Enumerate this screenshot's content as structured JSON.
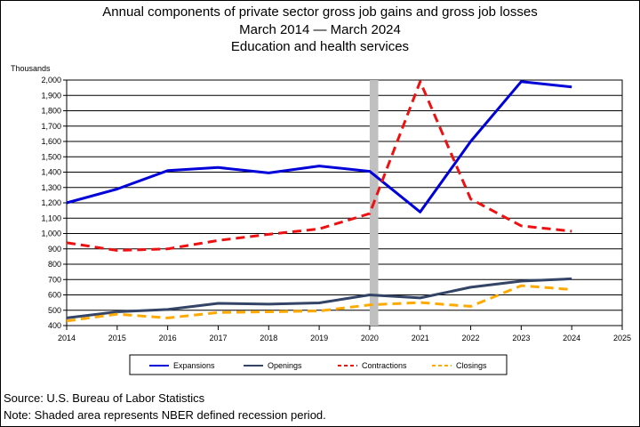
{
  "header": {
    "title_line1": "Annual components of private sector gross job gains and gross job losses",
    "title_line2": "March 2014  — March 2024",
    "title_line3": "Education and health services"
  },
  "footer": {
    "source": "Source: U.S. Bureau of Labor Statistics",
    "note": "Note: Shaded area represents NBER defined recession period."
  },
  "colors": {
    "expansions": "#0000d8",
    "openings": "#334466",
    "contractions": "#ee1111",
    "closings": "#ffaa00",
    "recession": "#c0c0c0"
  },
  "chart_data": {
    "type": "line",
    "ylabel": "Thousands",
    "ylim": [
      400,
      2000
    ],
    "xlim": [
      2014,
      2025
    ],
    "y_ticks": [
      "400",
      "500",
      "600",
      "700",
      "800",
      "900",
      "1,000",
      "1,100",
      "1,200",
      "1,300",
      "1,400",
      "1,500",
      "1,600",
      "1,700",
      "1,800",
      "1,900",
      "2,000"
    ],
    "x_ticks": [
      "2014",
      "2015",
      "2016",
      "2017",
      "2018",
      "2019",
      "2020",
      "2021",
      "2022",
      "2023",
      "2024",
      "2025"
    ],
    "grid": true,
    "legend_position": "bottom",
    "recession": {
      "start": 2020.0,
      "end": 2020.17
    },
    "x": [
      2014,
      2015,
      2016,
      2017,
      2018,
      2019,
      2020,
      2021,
      2022,
      2023,
      2024
    ],
    "series": [
      {
        "name": "Expansions",
        "style": "solid",
        "color": "#0000d8",
        "values": [
          1200,
          1290,
          1410,
          1430,
          1395,
          1440,
          1405,
          1140,
          1600,
          1990,
          1955
        ]
      },
      {
        "name": "Openings",
        "style": "solid",
        "color": "#334466",
        "values": [
          450,
          490,
          505,
          545,
          540,
          548,
          600,
          580,
          650,
          690,
          705
        ]
      },
      {
        "name": "Contractions",
        "style": "dashed",
        "color": "#ee1111",
        "values": [
          940,
          890,
          900,
          955,
          995,
          1030,
          1130,
          1990,
          1225,
          1050,
          1015
        ]
      },
      {
        "name": "Closings",
        "style": "dashed",
        "color": "#ffaa00",
        "values": [
          430,
          475,
          450,
          485,
          490,
          495,
          535,
          550,
          525,
          660,
          635
        ]
      }
    ]
  }
}
